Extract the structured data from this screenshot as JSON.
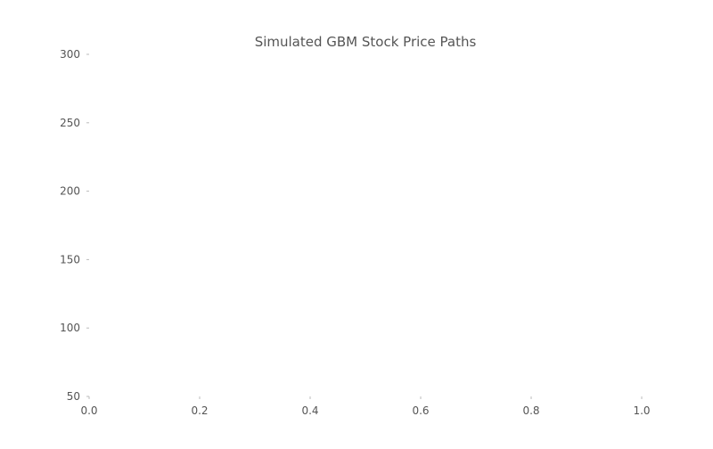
{
  "chart_data": {
    "type": "line",
    "title": "Simulated GBM Stock Price Paths",
    "xlabel": "",
    "ylabel": "",
    "xlim": [
      0.0,
      1.0
    ],
    "ylim": [
      50,
      300
    ],
    "x_ticks": [
      0.0,
      0.2,
      0.4,
      0.6,
      0.8,
      1.0
    ],
    "x_tick_labels": [
      "0.0",
      "0.2",
      "0.4",
      "0.6",
      "0.8",
      "1.0"
    ],
    "y_ticks": [
      50,
      100,
      150,
      200,
      250,
      300
    ],
    "y_tick_labels": [
      "50",
      "100",
      "150",
      "200",
      "250",
      "300"
    ],
    "grid": false,
    "series": [],
    "colors": {
      "text": "#555555",
      "tick": "#bbbbbb",
      "background": "#ffffff"
    }
  }
}
